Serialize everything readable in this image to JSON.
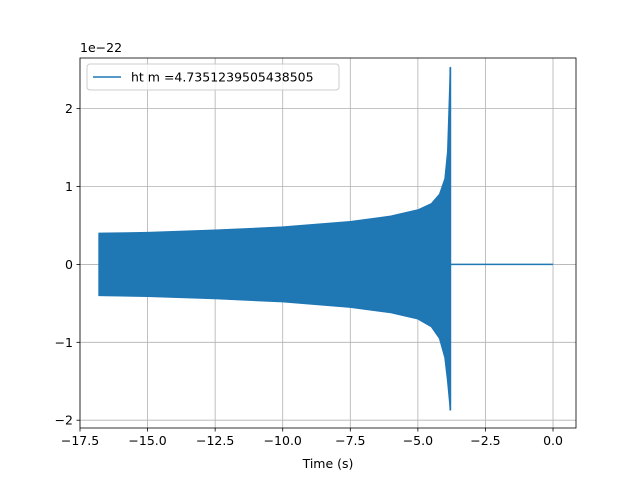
{
  "chart_data": {
    "type": "line",
    "title": "",
    "xlabel": "Time (s)",
    "ylabel": "",
    "y_offset_text": "1e−22",
    "xlim": [
      -17.5,
      0.85
    ],
    "ylim": [
      -2.1,
      2.65
    ],
    "x_ticks": [
      -17.5,
      -15.0,
      -12.5,
      -10.0,
      -7.5,
      -5.0,
      -2.5,
      0.0
    ],
    "x_tick_labels": [
      "−17.5",
      "−15.0",
      "−12.5",
      "−10.0",
      "−7.5",
      "−5.0",
      "−2.5",
      "0.0"
    ],
    "y_ticks": [
      -2,
      -1,
      0,
      1,
      2
    ],
    "y_tick_labels": [
      "−2",
      "−1",
      "0",
      "1",
      "2"
    ],
    "grid": true,
    "legend_position": "upper-left",
    "series": [
      {
        "name": "ht m =4.7351239505438505",
        "color": "#1f77b4",
        "signal_start": -16.8,
        "merger_time": -3.8,
        "signal_end": 0.0,
        "upper_envelope": [
          [
            -16.8,
            0.4
          ],
          [
            -15.0,
            0.41
          ],
          [
            -12.5,
            0.44
          ],
          [
            -10.0,
            0.48
          ],
          [
            -7.5,
            0.55
          ],
          [
            -6.0,
            0.62
          ],
          [
            -5.0,
            0.7
          ],
          [
            -4.5,
            0.78
          ],
          [
            -4.2,
            0.9
          ],
          [
            -4.0,
            1.1
          ],
          [
            -3.9,
            1.45
          ],
          [
            -3.8,
            2.53
          ]
        ],
        "lower_envelope": [
          [
            -16.8,
            -0.4
          ],
          [
            -15.0,
            -0.41
          ],
          [
            -12.5,
            -0.44
          ],
          [
            -10.0,
            -0.48
          ],
          [
            -7.5,
            -0.55
          ],
          [
            -6.0,
            -0.62
          ],
          [
            -5.0,
            -0.7
          ],
          [
            -4.5,
            -0.8
          ],
          [
            -4.2,
            -0.95
          ],
          [
            -4.0,
            -1.2
          ],
          [
            -3.9,
            -1.5
          ],
          [
            -3.8,
            -1.87
          ]
        ],
        "post_merger_value": 0.0
      }
    ]
  }
}
